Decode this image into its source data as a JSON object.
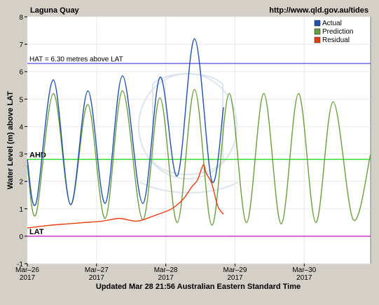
{
  "chart_data": {
    "type": "line",
    "title": "Laguna Quay",
    "url": "http://www.qld.gov.au/tides",
    "ylabel": "Water Level (m) above LAT",
    "xlabel": "Updated Mar 28 21:56 Australian Eastern Standard Time",
    "ylim": [
      -1,
      8
    ],
    "yticks": [
      "-1",
      "0",
      "1",
      "2",
      "3",
      "4",
      "5",
      "6",
      "7",
      "8"
    ],
    "xlim": [
      "2017-03-26 00:00",
      "2017-03-30 23:00"
    ],
    "xticks": [
      {
        "label": "Mar–26",
        "year": "2017",
        "t": "2017-03-26"
      },
      {
        "label": "Mar–27",
        "year": "2017",
        "t": "2017-03-27"
      },
      {
        "label": "Mar–28",
        "year": "2017",
        "t": "2017-03-28"
      },
      {
        "label": "Mar–29",
        "year": "2017",
        "t": "2017-03-29"
      },
      {
        "label": "Mar–30",
        "year": "2017",
        "t": "2017-03-30"
      }
    ],
    "reference_lines": [
      {
        "label": "HAT = 6.30 metres above LAT",
        "value": 6.3,
        "color": "#6b6bdc"
      },
      {
        "label": "AHD",
        "value": 2.8,
        "color": "#33dd33"
      },
      {
        "label": "LAT",
        "value": 0,
        "color": "#cc33cc"
      }
    ],
    "legend": {
      "position": "top-right"
    },
    "series": [
      {
        "name": "Actual",
        "color": "#1f4fb4",
        "points": [
          [
            "2017-03-26 00:00",
            2.8
          ],
          [
            "2017-03-26 03:00",
            1.2
          ],
          [
            "2017-03-26 09:00",
            5.7
          ],
          [
            "2017-03-26 15:00",
            1.15
          ],
          [
            "2017-03-26 21:00",
            5.3
          ],
          [
            "2017-03-27 03:00",
            1.2
          ],
          [
            "2017-03-27 09:00",
            5.85
          ],
          [
            "2017-03-27 16:00",
            1.2
          ],
          [
            "2017-03-27 22:00",
            5.8
          ],
          [
            "2017-03-28 04:00",
            2.2
          ],
          [
            "2017-03-28 10:00",
            7.2
          ],
          [
            "2017-03-28 16:00",
            2.0
          ],
          [
            "2017-03-28 20:00",
            4.7
          ]
        ]
      },
      {
        "name": "Prediction",
        "color": "#6a9e3c",
        "points": [
          [
            "2017-03-26 00:00",
            2.6
          ],
          [
            "2017-03-26 03:00",
            0.8
          ],
          [
            "2017-03-26 09:00",
            5.2
          ],
          [
            "2017-03-26 15:00",
            1.15
          ],
          [
            "2017-03-26 21:00",
            4.8
          ],
          [
            "2017-03-27 03:00",
            0.65
          ],
          [
            "2017-03-27 09:00",
            5.3
          ],
          [
            "2017-03-27 16:00",
            0.6
          ],
          [
            "2017-03-27 22:00",
            5.05
          ],
          [
            "2017-03-28 04:00",
            0.5
          ],
          [
            "2017-03-28 10:00",
            5.35
          ],
          [
            "2017-03-28 16:00",
            0.4
          ],
          [
            "2017-03-28 22:00",
            5.2
          ],
          [
            "2017-03-29 04:00",
            0.5
          ],
          [
            "2017-03-29 10:00",
            5.2
          ],
          [
            "2017-03-29 16:00",
            0.45
          ],
          [
            "2017-03-29 22:00",
            5.2
          ],
          [
            "2017-03-30 04:00",
            0.5
          ],
          [
            "2017-03-30 10:00",
            4.9
          ],
          [
            "2017-03-30 17:00",
            0.6
          ],
          [
            "2017-03-30 23:00",
            3.0
          ]
        ]
      },
      {
        "name": "Residual",
        "color": "#e83c10",
        "points": [
          [
            "2017-03-26 00:00",
            0.3
          ],
          [
            "2017-03-26 08:00",
            0.4
          ],
          [
            "2017-03-26 14:00",
            0.45
          ],
          [
            "2017-03-26 20:00",
            0.5
          ],
          [
            "2017-03-27 02:00",
            0.55
          ],
          [
            "2017-03-27 08:00",
            0.65
          ],
          [
            "2017-03-27 14:00",
            0.55
          ],
          [
            "2017-03-27 20:00",
            0.75
          ],
          [
            "2017-03-28 02:00",
            1.0
          ],
          [
            "2017-03-28 06:00",
            1.35
          ],
          [
            "2017-03-28 09:00",
            1.8
          ],
          [
            "2017-03-28 11:00",
            2.05
          ],
          [
            "2017-03-28 13:00",
            2.6
          ],
          [
            "2017-03-28 14:00",
            2.3
          ],
          [
            "2017-03-28 16:00",
            1.9
          ],
          [
            "2017-03-28 18:00",
            1.1
          ],
          [
            "2017-03-28 20:00",
            0.8
          ]
        ]
      }
    ]
  }
}
